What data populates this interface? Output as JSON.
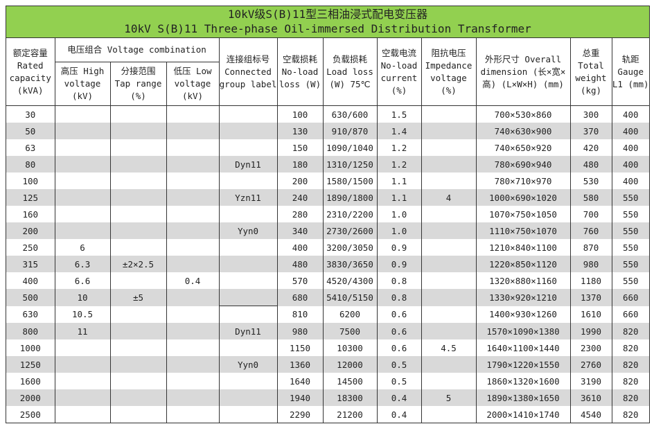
{
  "title": {
    "zh": "10kV级S(B)11型三相油浸式配电变压器",
    "en": "10kV S(B)11 Three-phase Oil-immersed Distribution Transformer"
  },
  "colors": {
    "title_bg": "#92d050",
    "stripe": "#d9d9d9"
  },
  "headers": {
    "rated_capacity": "额定容量 Rated capacity (kVA)",
    "voltage_combination": "电压组合 Voltage combination",
    "high_voltage": "高压 High voltage (kV)",
    "tap_range": "分接范围 Tap range (%)",
    "low_voltage": "低压 Low voltage (kV)",
    "connected_group": "连接组标号 Connected group label",
    "no_load_loss": "空载损耗 No-load loss (W)",
    "load_loss": "负载损耗 Load loss (W) 75℃",
    "no_load_current": "空载电流 No-load current (%)",
    "impedance_voltage": "阻抗电压 Impedance voltage (%)",
    "dimension": "外形尺寸 Overall dimension (长×宽×高) (L×W×H) (mm)",
    "total_weight": "总重 Total weight (kg)",
    "gauge": "轨距 Gauge L1 (mm)"
  },
  "rows": [
    [
      "30",
      "",
      "",
      "",
      "",
      "100",
      "630/600",
      "1.5",
      "",
      "700×530×860",
      "300",
      "400"
    ],
    [
      "50",
      "",
      "",
      "",
      "",
      "130",
      "910/870",
      "1.4",
      "",
      "740×630×900",
      "370",
      "400"
    ],
    [
      "63",
      "",
      "",
      "",
      "",
      "150",
      "1090/1040",
      "1.2",
      "",
      "740×650×920",
      "420",
      "400"
    ],
    [
      "80",
      "",
      "",
      "",
      "Dyn11",
      "180",
      "1310/1250",
      "1.2",
      "",
      "780×690×940",
      "480",
      "400"
    ],
    [
      "100",
      "",
      "",
      "",
      "",
      "200",
      "1580/1500",
      "1.1",
      "",
      "780×710×970",
      "530",
      "400"
    ],
    [
      "125",
      "",
      "",
      "",
      "Yzn11",
      "240",
      "1890/1800",
      "1.1",
      "4",
      "1000×690×1020",
      "580",
      "550"
    ],
    [
      "160",
      "",
      "",
      "",
      "",
      "280",
      "2310/2200",
      "1.0",
      "",
      "1070×750×1050",
      "700",
      "550"
    ],
    [
      "200",
      "",
      "",
      "",
      "Yyn0",
      "340",
      "2730/2600",
      "1.0",
      "",
      "1110×750×1070",
      "760",
      "550"
    ],
    [
      "250",
      "6",
      "",
      "",
      "",
      "400",
      "3200/3050",
      "0.9",
      "",
      "1210×840×1100",
      "870",
      "550"
    ],
    [
      "315",
      "6.3",
      "±2×2.5",
      "",
      "",
      "480",
      "3830/3650",
      "0.9",
      "",
      "1220×850×1120",
      "980",
      "550"
    ],
    [
      "400",
      "6.6",
      "",
      "0.4",
      "",
      "570",
      "4520/4300",
      "0.8",
      "",
      "1320×880×1160",
      "1180",
      "550"
    ],
    [
      "500",
      "10",
      "±5",
      "",
      "",
      "680",
      "5410/5150",
      "0.8",
      "",
      "1330×920×1210",
      "1370",
      "660"
    ],
    [
      "630",
      "10.5",
      "",
      "",
      "",
      "810",
      "6200",
      "0.6",
      "",
      "1400×930×1260",
      "1610",
      "660"
    ],
    [
      "800",
      "11",
      "",
      "",
      "Dyn11",
      "980",
      "7500",
      "0.6",
      "",
      "1570×1090×1380",
      "1990",
      "820"
    ],
    [
      "1000",
      "",
      "",
      "",
      "",
      "1150",
      "10300",
      "0.6",
      "4.5",
      "1640×1100×1440",
      "2300",
      "820"
    ],
    [
      "1250",
      "",
      "",
      "",
      "Yyn0",
      "1360",
      "12000",
      "0.5",
      "",
      "1790×1220×1550",
      "2760",
      "820"
    ],
    [
      "1600",
      "",
      "",
      "",
      "",
      "1640",
      "14500",
      "0.5",
      "",
      "1860×1320×1600",
      "3190",
      "820"
    ],
    [
      "2000",
      "",
      "",
      "",
      "",
      "1940",
      "18300",
      "0.4",
      "5",
      "1890×1380×1650",
      "3610",
      "820"
    ],
    [
      "2500",
      "",
      "",
      "",
      "",
      "2290",
      "21200",
      "0.4",
      "",
      "2000×1410×1740",
      "4540",
      "820"
    ]
  ]
}
